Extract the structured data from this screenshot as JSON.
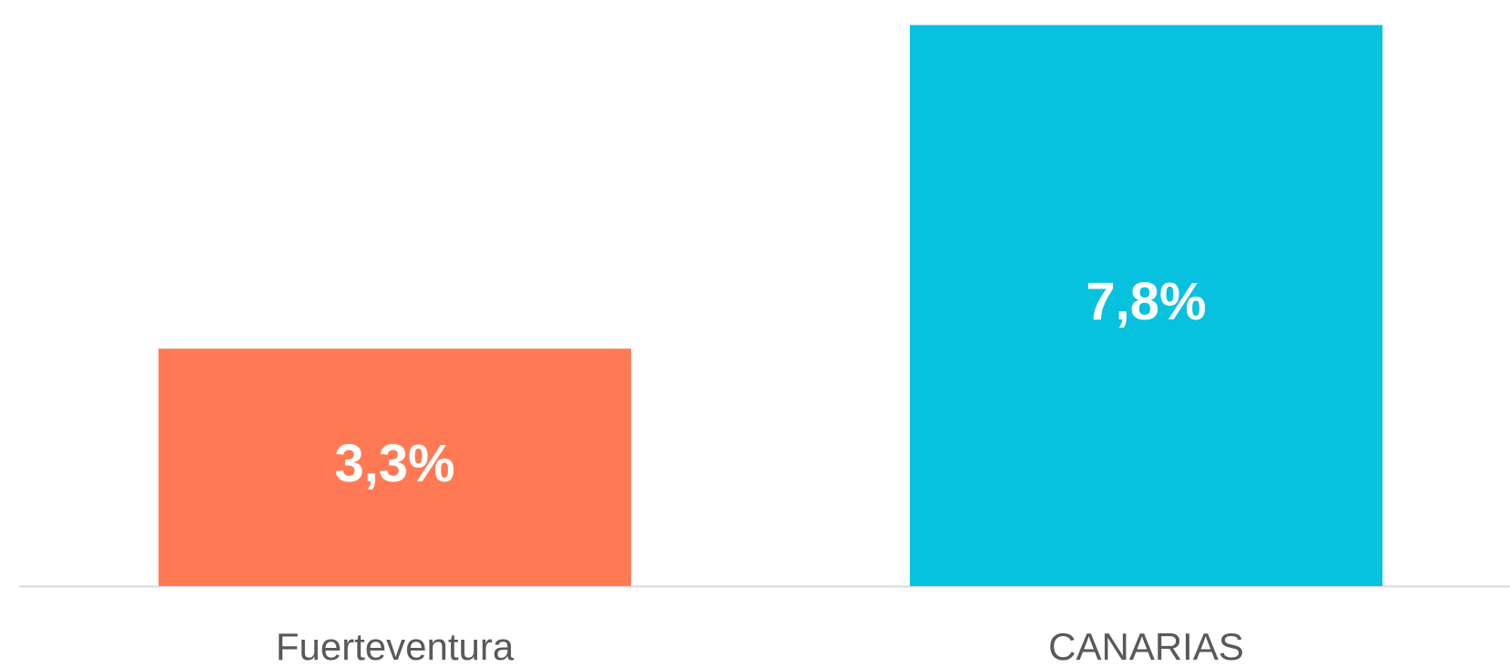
{
  "chart_data": {
    "type": "bar",
    "categories": [
      "Fuerteventura",
      "CANARIAS"
    ],
    "values": [
      3.3,
      7.8
    ],
    "value_labels": [
      "3,3%",
      "7,8%"
    ],
    "colors": [
      "#ff7a54",
      "#06c2de"
    ],
    "ylim": [
      0,
      7.8
    ]
  }
}
